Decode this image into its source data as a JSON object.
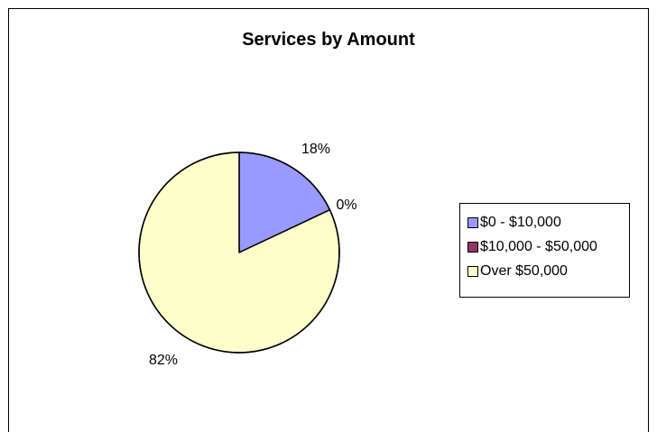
{
  "chart_data": {
    "type": "pie",
    "title": "Services by Amount",
    "categories": [
      "$0 - $10,000",
      "$10,000 - $50,000",
      "Over $50,000"
    ],
    "values": [
      18,
      0,
      82
    ],
    "labels": [
      "18%",
      "0%",
      "82%"
    ],
    "colors": [
      "#9999FF",
      "#993366",
      "#FFFFCC"
    ],
    "legend_position": "right",
    "start_angle_deg": 0,
    "direction": "clockwise"
  }
}
